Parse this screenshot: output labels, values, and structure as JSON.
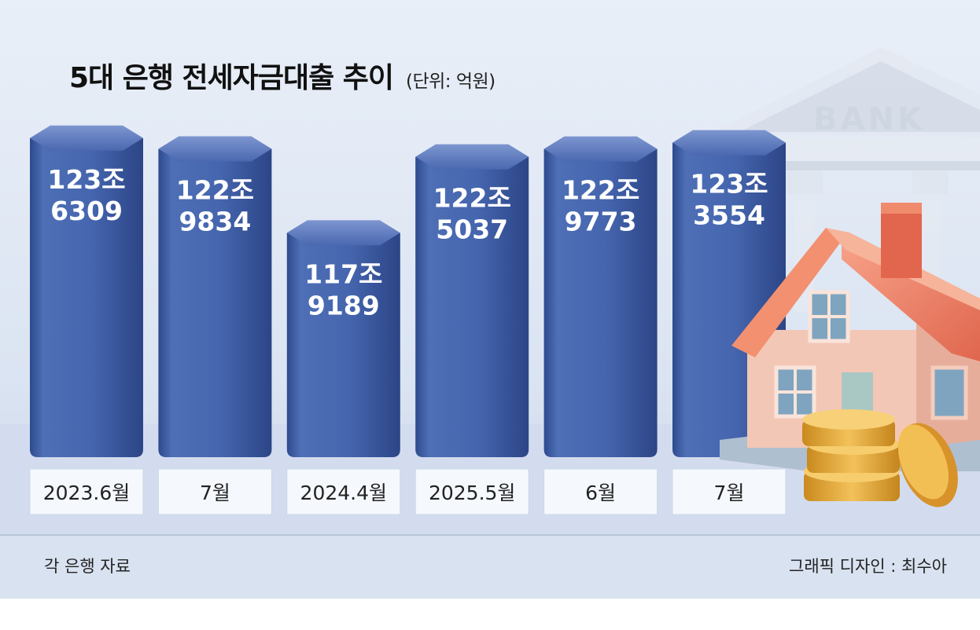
{
  "chart_data": {
    "type": "bar",
    "title": "5대 은행 전세자금대출 추이",
    "unit": "(단위: 억원)",
    "categories": [
      "2023.6월",
      "7월",
      "2024.4월",
      "2025.5월",
      "6월",
      "7월"
    ],
    "values": [
      1236309,
      1229834,
      1179189,
      1225037,
      1229773,
      1233554
    ],
    "value_labels": [
      [
        "123조",
        "6309"
      ],
      [
        "122조",
        "9834"
      ],
      [
        "117조",
        "9189"
      ],
      [
        "122조",
        "5037"
      ],
      [
        "122조",
        "9773"
      ],
      [
        "123조",
        "3554"
      ]
    ],
    "grid": false,
    "legend": "none"
  },
  "footer": {
    "source": "각 은행 자료",
    "credit": "그래픽 디자인 : 최수아"
  },
  "illustration": {
    "sign_text": "BANK"
  },
  "colors": {
    "bar": "#3f5ea8",
    "bar_top": "#5b79c0",
    "background": "#dfe8f5",
    "label_box": "#f5f8fd"
  }
}
